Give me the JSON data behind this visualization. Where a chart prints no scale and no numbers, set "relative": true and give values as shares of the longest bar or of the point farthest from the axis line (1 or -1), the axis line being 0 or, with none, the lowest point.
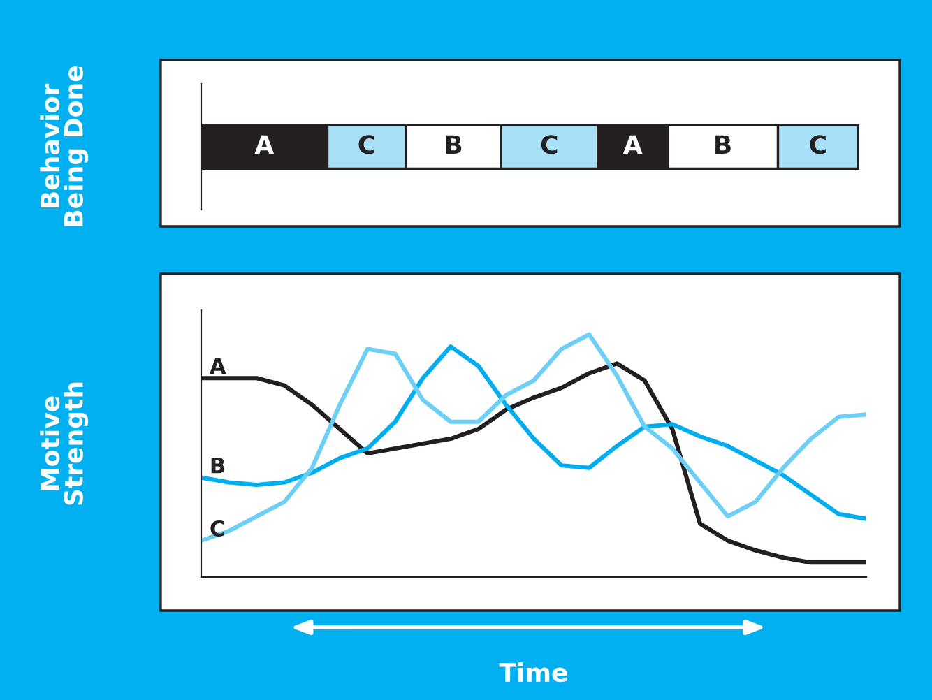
{
  "chart_data": [
    {
      "type": "bar",
      "orientation": "horizontal",
      "stacked": true,
      "relative": true,
      "ylabel": "Behavior\nBeing Done",
      "categories": [
        null
      ],
      "tick_labels": false,
      "series": [
        {
          "name": "A",
          "color": "#231f20",
          "values": [
            0.192
          ]
        },
        {
          "name": "C",
          "color": "#a8e0f8",
          "values": [
            0.12
          ]
        },
        {
          "name": "B",
          "color": "#ffffff",
          "values": [
            0.144
          ]
        },
        {
          "name": "C",
          "color": "#a8e0f8",
          "values": [
            0.148
          ]
        },
        {
          "name": "A",
          "color": "#231f20",
          "values": [
            0.106
          ]
        },
        {
          "name": "B",
          "color": "#ffffff",
          "values": [
            0.168
          ]
        },
        {
          "name": "C",
          "color": "#a8e0f8",
          "values": [
            0.122
          ]
        }
      ]
    },
    {
      "type": "line",
      "relative": true,
      "ylabel": "Motive\nStrength",
      "xlabel": "Time",
      "tick_labels": false,
      "categories": [
        null,
        null,
        null,
        null,
        null,
        null,
        null,
        null,
        null,
        null,
        null,
        null,
        null,
        null,
        null,
        null,
        null,
        null,
        null,
        null,
        null,
        null,
        null,
        null,
        null
      ],
      "series": [
        {
          "name": "A",
          "color": "#231f20",
          "values": [
            0.82,
            0.82,
            0.82,
            0.79,
            0.71,
            0.61,
            0.51,
            0.53,
            0.55,
            0.57,
            0.61,
            0.69,
            0.74,
            0.78,
            0.84,
            0.88,
            0.81,
            0.61,
            0.22,
            0.15,
            0.11,
            0.08,
            0.06,
            0.06,
            0.06
          ]
        },
        {
          "name": "B",
          "color": "#00aeef",
          "values": [
            0.41,
            0.39,
            0.38,
            0.39,
            0.43,
            0.49,
            0.53,
            0.64,
            0.82,
            0.95,
            0.87,
            0.71,
            0.57,
            0.46,
            0.45,
            0.54,
            0.62,
            0.63,
            0.58,
            0.54,
            0.48,
            0.42,
            0.34,
            0.26,
            0.24
          ]
        },
        {
          "name": "C",
          "color": "#6dcff6",
          "values": [
            0.15,
            0.19,
            0.25,
            0.31,
            0.45,
            0.71,
            0.94,
            0.92,
            0.73,
            0.64,
            0.64,
            0.75,
            0.81,
            0.94,
            1.0,
            0.83,
            0.62,
            0.53,
            0.39,
            0.25,
            0.31,
            0.45,
            0.57,
            0.66,
            0.67
          ]
        }
      ]
    }
  ]
}
